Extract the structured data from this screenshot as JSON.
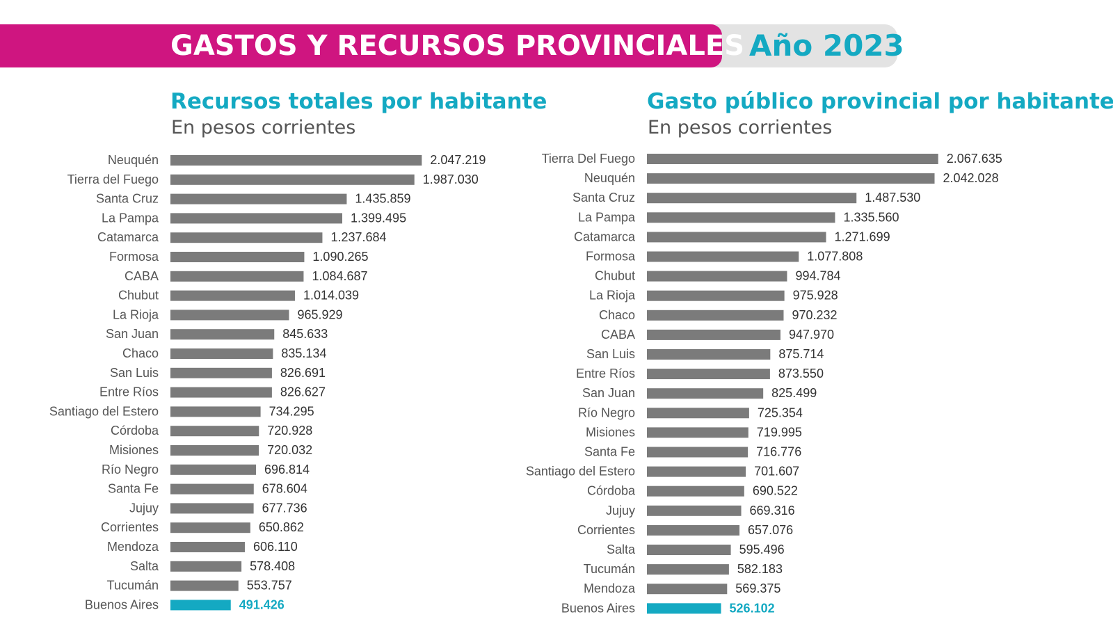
{
  "header": {
    "title": "GASTOS Y RECURSOS PROVINCIALES",
    "year": "Año 2023"
  },
  "colors": {
    "banner_magenta": "#cf1580",
    "banner_gray": "#e3e3e3",
    "accent_teal": "#14a9c2",
    "bar_gray": "#7b7b7b",
    "highlight_bar": "#14a9c2"
  },
  "chart_data": [
    {
      "type": "bar",
      "orientation": "horizontal",
      "title": "Recursos totales por habitante",
      "subtitle": "En pesos corrientes",
      "highlight": "Buenos Aires",
      "categories": [
        "Neuquén",
        "Tierra del Fuego",
        "Santa Cruz",
        "La Pampa",
        "Catamarca",
        "Formosa",
        "CABA",
        "Chubut",
        "La Rioja",
        "San Juan",
        "Chaco",
        "San Luis",
        "Entre Ríos",
        "Santiago del Estero",
        "Córdoba",
        "Misiones",
        "Río Negro",
        "Santa Fe",
        "Jujuy",
        "Corrientes",
        "Mendoza",
        "Salta",
        "Tucumán",
        "Buenos Aires"
      ],
      "values": [
        2047219,
        1987030,
        1435859,
        1399495,
        1237684,
        1090265,
        1084687,
        1014039,
        965929,
        845633,
        835134,
        826691,
        826627,
        734295,
        720928,
        720032,
        696814,
        678604,
        677736,
        650862,
        606110,
        578408,
        553757,
        491426
      ],
      "labels": [
        "2.047.219",
        "1.987.030",
        "1.435.859",
        "1.399.495",
        "1.237.684",
        "1.090.265",
        "1.084.687",
        "1.014.039",
        "965.929",
        "845.633",
        "835.134",
        "826.691",
        "826.627",
        "734.295",
        "720.928",
        "720.032",
        "696.814",
        "678.604",
        "677.736",
        "650.862",
        "606.110",
        "578.408",
        "553.757",
        "491.426"
      ]
    },
    {
      "type": "bar",
      "orientation": "horizontal",
      "title": "Gasto público provincial por habitante",
      "subtitle": "En pesos corrientes",
      "highlight": "Buenos Aires",
      "categories": [
        "Tierra Del Fuego",
        "Neuquén",
        "Santa Cruz",
        "La Pampa",
        "Catamarca",
        "Formosa",
        "Chubut",
        "La Rioja",
        "Chaco",
        "CABA",
        "San Luis",
        "Entre Ríos",
        "San Juan",
        "Río Negro",
        "Misiones",
        "Santa Fe",
        "Santiago del Estero",
        "Córdoba",
        "Jujuy",
        "Corrientes",
        "Salta",
        "Tucumán",
        "Mendoza",
        "Buenos Aires"
      ],
      "values": [
        2067635,
        2042028,
        1487530,
        1335560,
        1271699,
        1077808,
        994784,
        975928,
        970232,
        947970,
        875714,
        873550,
        825499,
        725354,
        719995,
        716776,
        701607,
        690522,
        669316,
        657076,
        595496,
        582183,
        569375,
        526102
      ],
      "labels": [
        "2.067.635",
        "2.042.028",
        "1.487.530",
        "1.335.560",
        "1.271.699",
        "1.077.808",
        "994.784",
        "975.928",
        "970.232",
        "947.970",
        "875.714",
        "873.550",
        "825.499",
        "725.354",
        "719.995",
        "716.776",
        "701.607",
        "690.522",
        "669.316",
        "657.076",
        "595.496",
        "582.183",
        "569.375",
        "526.102"
      ]
    }
  ]
}
